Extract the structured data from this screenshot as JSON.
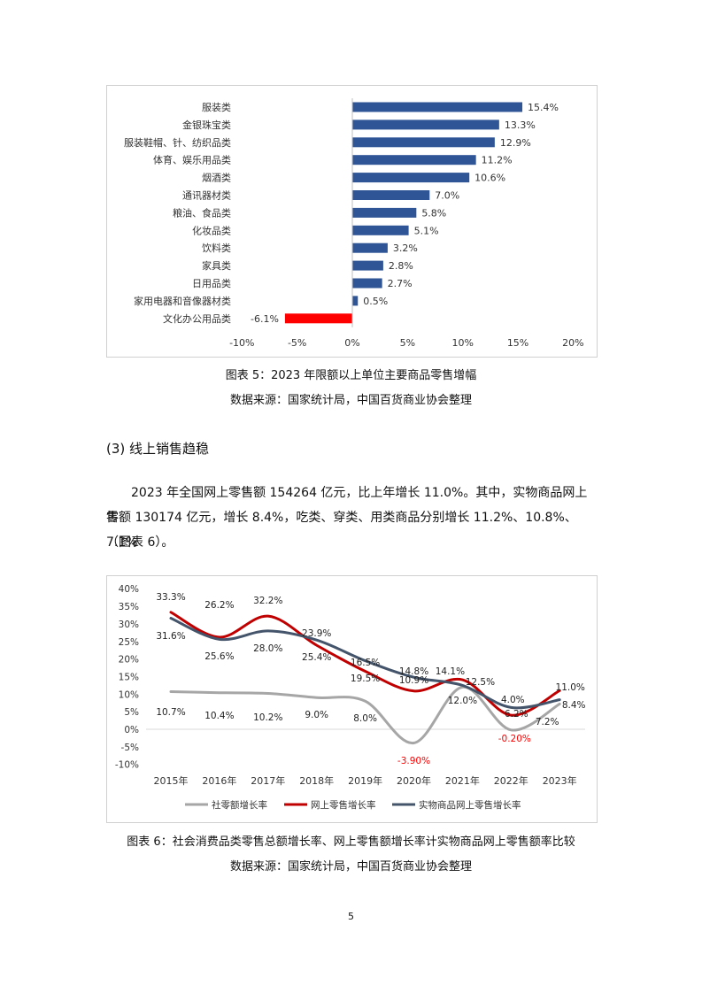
{
  "chart5": {
    "caption": "图表 5：2023 年限额以上单位主要商品零售增幅",
    "source": "数据来源：国家统计局，中国百货商业协会整理"
  },
  "section": {
    "heading": "(3)  线上销售趋稳",
    "para_line1": "2023 年全国网上零售额 154264 亿元，比上年增长 11.0%。其中，实物商品网上零",
    "para_line2": "售额 130174 亿元，增长 8.4%，吃类、穿类、用类商品分别增长 11.2%、10.8%、7.1%",
    "para_line3": "（图表 6）。"
  },
  "chart6": {
    "caption": "图表 6：社会消费品类零售总额增长率、网上零售额增长率计实物商品网上零售额率比较",
    "source": "数据来源：国家统计局，中国百货商业协会整理"
  },
  "page_number": "5",
  "chart_data": [
    {
      "type": "bar",
      "orientation": "horizontal",
      "categories": [
        "服装类",
        "金银珠宝类",
        "服装鞋帽、针、纺织品类",
        "体育、娱乐用品类",
        "烟酒类",
        "通讯器材类",
        "粮油、食品类",
        "化妆品类",
        "饮料类",
        "家具类",
        "日用品类",
        "家用电器和音像器材类",
        "文化办公用品类"
      ],
      "values": [
        15.4,
        13.3,
        12.9,
        11.2,
        10.6,
        7.0,
        5.8,
        5.1,
        3.2,
        2.8,
        2.7,
        0.5,
        -6.1
      ],
      "value_labels": [
        "15.4%",
        "13.3%",
        "12.9%",
        "11.2%",
        "10.6%",
        "7.0%",
        "5.8%",
        "5.1%",
        "3.2%",
        "2.8%",
        "2.7%",
        "0.5%",
        "-6.1%"
      ],
      "xlim": [
        -10,
        20
      ],
      "xticks": [
        "-10%",
        "-5%",
        "0%",
        "5%",
        "10%",
        "15%",
        "20%"
      ],
      "grid": false,
      "colors": {
        "positive": "#2f5597",
        "negative": "#ff0000"
      }
    },
    {
      "type": "line",
      "x": [
        "2015年",
        "2016年",
        "2017年",
        "2018年",
        "2019年",
        "2020年",
        "2021年",
        "2022年",
        "2023年"
      ],
      "ylim": [
        -10,
        40
      ],
      "yticks": [
        "-10%",
        "-5%",
        "0%",
        "5%",
        "10%",
        "15%",
        "20%",
        "25%",
        "30%",
        "35%",
        "40%"
      ],
      "grid": false,
      "legend_position": "bottom",
      "series": [
        {
          "name": "社零额增长率",
          "color": "#a6a6a6",
          "values": [
            10.7,
            10.4,
            10.2,
            9.0,
            8.0,
            -3.9,
            12.0,
            -0.2,
            7.2
          ],
          "labels": [
            "10.7%",
            "10.4%",
            "10.2%",
            "9.0%",
            "8.0%",
            "-3.90%",
            "12.0%",
            "-0.20%",
            "7.2%"
          ]
        },
        {
          "name": "网上零售增长率",
          "color": "#c00000",
          "values": [
            33.3,
            26.2,
            32.2,
            23.9,
            16.5,
            10.9,
            14.1,
            4.0,
            11.0
          ],
          "labels": [
            "33.3%",
            "26.2%",
            "32.2%",
            "23.9%",
            "16.5%",
            "10.9%",
            "14.1%",
            "4.0%",
            "11.0%"
          ]
        },
        {
          "name": "实物商品网上零售增长率",
          "color": "#44546a",
          "values": [
            31.6,
            25.6,
            28.0,
            25.4,
            19.5,
            14.8,
            12.5,
            6.2,
            8.4
          ],
          "labels": [
            "31.6%",
            "25.6%",
            "28.0%",
            "25.4%",
            "19.5%",
            "14.8%",
            "12.5%",
            "6.2%",
            "8.4%"
          ]
        }
      ]
    }
  ]
}
